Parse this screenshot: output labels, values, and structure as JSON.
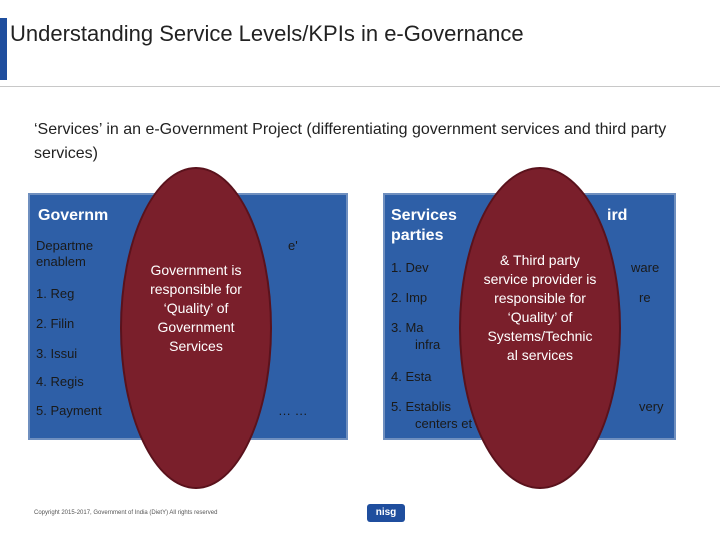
{
  "header": {
    "title": "Understanding Service Levels/KPIs in e-Governance"
  },
  "subtitle": "‘Services’ in an e-Government Project (differentiating government services and third party services)",
  "left_panel": {
    "title": "Governm",
    "intro_line1_left": "Departme",
    "intro_line1_right": "e'",
    "intro_line2": "enablem",
    "items": [
      "1.  Reg",
      "2.  Filin",
      "3.  Issui",
      "4.  Regis",
      "5.  Payment"
    ],
    "item5_tail": "… …"
  },
  "left_oval": {
    "text_lines": [
      "Government is",
      "responsible for",
      "‘Quality’ of",
      "Government",
      "Services"
    ]
  },
  "right_panel": {
    "title_line1_left": "Services",
    "title_line1_right": "ird",
    "title_line2": "parties",
    "items": [
      {
        "num": "1.  Dev",
        "tail": "ware"
      },
      {
        "num": "2.  Imp",
        "tail": "re"
      },
      {
        "num": "3.  Ma",
        "line2": "infra"
      },
      {
        "num": "4.  Esta",
        "tail": ""
      },
      {
        "num": "5.  Establis",
        "tail": "very",
        "line2": "centers et"
      }
    ]
  },
  "right_oval": {
    "text_lines": [
      "& Third party",
      "service provider is",
      "responsible for",
      "‘Quality’ of",
      "Systems/Technic",
      "al services"
    ]
  },
  "footer": {
    "copyright": "Copyright 2015-2017, Government of India (DietY) All rights reserved",
    "logo_text": "nisg"
  }
}
